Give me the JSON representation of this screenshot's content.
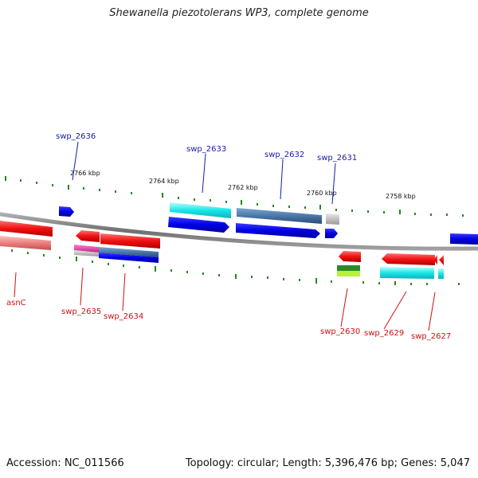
{
  "title": "Shewanella piezotolerans WP3, complete genome",
  "accession": "Accession: NC_011566",
  "summary": "Topology: circular; Length: 5,396,476 bp; Genes: 5,047",
  "scale_labels": [
    "2766 kbp",
    "2764 kbp",
    "2762 kbp",
    "2760 kbp",
    "2758 kbp"
  ],
  "top_gene_labels": [
    "swp_2636",
    "swp_2633",
    "swp_2632",
    "swp_2631"
  ],
  "bottom_gene_labels": [
    "asnC",
    "swp_2635",
    "swp_2634",
    "swp_2630",
    "swp_2629",
    "swp_2627"
  ],
  "colors": {
    "forward_label": "#1a1aa8",
    "reverse_label": "#cc1111",
    "tick": "#1f8a1f",
    "backbone": "#8a8a8a",
    "gene_blue": "#1010e0",
    "gene_cyan": "#20e8e8",
    "gene_steel": "#4a7ab0",
    "gene_red": "#ee1111",
    "gene_pink": "#f08888",
    "gene_magenta": "#e040a0",
    "gene_gray": "#b8b8b8",
    "gene_green": "#2a8a2a",
    "gene_lime": "#b8f040"
  }
}
